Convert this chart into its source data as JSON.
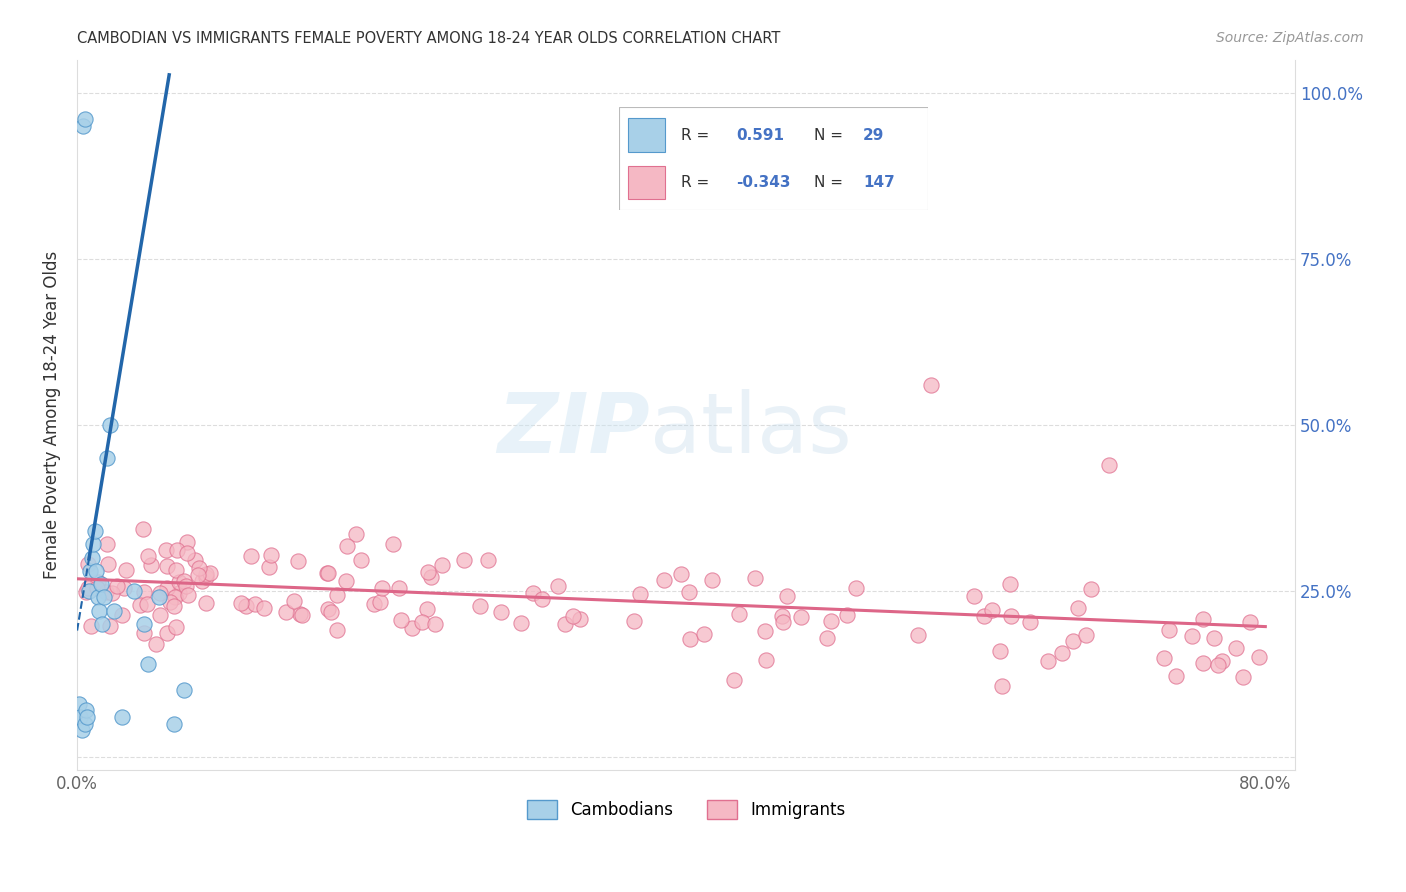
{
  "title": "CAMBODIAN VS IMMIGRANTS FEMALE POVERTY AMONG 18-24 YEAR OLDS CORRELATION CHART",
  "source": "Source: ZipAtlas.com",
  "ylabel": "Female Poverty Among 18-24 Year Olds",
  "xlim": [
    0.0,
    0.82
  ],
  "ylim": [
    -0.02,
    1.05
  ],
  "cambodian_color": "#a8d0e8",
  "immigrant_color": "#f5b8c4",
  "cambodian_edge": "#5599cc",
  "immigrant_edge": "#e07090",
  "trend_blue": "#2266aa",
  "trend_pink": "#dd6688",
  "R_blue": 0.591,
  "N_blue": 29,
  "R_pink": -0.343,
  "N_pink": 147,
  "label_cambodians": "Cambodians",
  "label_immigrants": "Immigrants",
  "watermark_ZIP": "ZIP",
  "watermark_atlas": "atlas",
  "bg_color": "#ffffff",
  "grid_color": "#dddddd",
  "right_axis_color": "#4472c4"
}
